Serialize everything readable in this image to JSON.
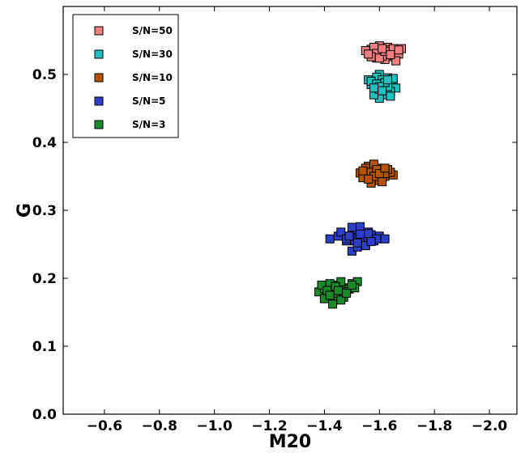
{
  "chart_data": {
    "type": "scatter",
    "title": "",
    "xlabel": "M20",
    "ylabel": "G",
    "xlim": [
      -0.45,
      -2.1
    ],
    "ylim": [
      0.0,
      0.6
    ],
    "x_reversed": true,
    "x_ticks": [
      -0.6,
      -0.8,
      -1.0,
      -1.2,
      -1.4,
      -1.6,
      -1.8,
      -2.0
    ],
    "x_tick_labels": [
      "−0.6",
      "−0.8",
      "−1.0",
      "−1.2",
      "−1.4",
      "−1.6",
      "−1.8",
      "−2.0"
    ],
    "y_ticks": [
      0.0,
      0.1,
      0.2,
      0.3,
      0.4,
      0.5
    ],
    "y_tick_labels": [
      "0.0",
      "0.1",
      "0.2",
      "0.3",
      "0.4",
      "0.5"
    ],
    "grid": false,
    "legend_position": "top-left",
    "marker": "square",
    "series": [
      {
        "name": "S/N=50",
        "color": "#f08080",
        "x": [
          -1.56,
          -1.58,
          -1.6,
          -1.62,
          -1.64,
          -1.66,
          -1.68,
          -1.57,
          -1.59,
          -1.61,
          -1.63,
          -1.65,
          -1.67,
          -1.6,
          -1.62,
          -1.55,
          -1.64,
          -1.66,
          -1.58,
          -1.61,
          -1.63,
          -1.59,
          -1.65,
          -1.57,
          -1.6,
          -1.62,
          -1.64,
          -1.56,
          -1.67,
          -1.61
        ],
        "y": [
          0.532,
          0.528,
          0.535,
          0.53,
          0.526,
          0.534,
          0.538,
          0.537,
          0.524,
          0.532,
          0.54,
          0.528,
          0.53,
          0.542,
          0.522,
          0.535,
          0.533,
          0.52,
          0.54,
          0.527,
          0.536,
          0.531,
          0.538,
          0.526,
          0.524,
          0.534,
          0.529,
          0.53,
          0.536,
          0.538
        ]
      },
      {
        "name": "S/N=30",
        "color": "#20c0c0",
        "x": [
          -1.57,
          -1.59,
          -1.61,
          -1.63,
          -1.65,
          -1.6,
          -1.62,
          -1.58,
          -1.64,
          -1.56,
          -1.61,
          -1.63,
          -1.59,
          -1.66,
          -1.6,
          -1.62,
          -1.57,
          -1.64,
          -1.61,
          -1.58,
          -1.63,
          -1.6,
          -1.65,
          -1.59,
          -1.62,
          -1.6,
          -1.58,
          -1.64,
          -1.61,
          -1.63
        ],
        "y": [
          0.485,
          0.49,
          0.48,
          0.495,
          0.485,
          0.5,
          0.475,
          0.478,
          0.49,
          0.492,
          0.488,
          0.47,
          0.496,
          0.48,
          0.465,
          0.484,
          0.49,
          0.475,
          0.492,
          0.47,
          0.482,
          0.478,
          0.494,
          0.486,
          0.488,
          0.482,
          0.48,
          0.468,
          0.476,
          0.492
        ]
      },
      {
        "name": "S/N=10",
        "color": "#b35400",
        "x": [
          -1.53,
          -1.55,
          -1.57,
          -1.59,
          -1.61,
          -1.63,
          -1.65,
          -1.54,
          -1.56,
          -1.58,
          -1.6,
          -1.62,
          -1.64,
          -1.55,
          -1.57,
          -1.59,
          -1.61,
          -1.63,
          -1.56,
          -1.58,
          -1.6,
          -1.62,
          -1.54,
          -1.57,
          -1.59,
          -1.61,
          -1.58,
          -1.6,
          -1.56,
          -1.62
        ],
        "y": [
          0.355,
          0.36,
          0.35,
          0.362,
          0.355,
          0.358,
          0.352,
          0.348,
          0.365,
          0.345,
          0.36,
          0.35,
          0.356,
          0.362,
          0.34,
          0.354,
          0.348,
          0.36,
          0.352,
          0.368,
          0.344,
          0.354,
          0.358,
          0.356,
          0.36,
          0.342,
          0.35,
          0.354,
          0.346,
          0.362
        ]
      },
      {
        "name": "S/N=5",
        "color": "#2c3fc6",
        "x": [
          -1.42,
          -1.45,
          -1.48,
          -1.5,
          -1.52,
          -1.54,
          -1.56,
          -1.58,
          -1.6,
          -1.62,
          -1.46,
          -1.49,
          -1.51,
          -1.53,
          -1.55,
          -1.57,
          -1.59,
          -1.5,
          -1.52,
          -1.54,
          -1.56,
          -1.48,
          -1.53,
          -1.55,
          -1.51,
          -1.57,
          -1.49,
          -1.53,
          -1.52,
          -1.5
        ],
        "y": [
          0.258,
          0.262,
          0.255,
          0.265,
          0.27,
          0.25,
          0.268,
          0.255,
          0.262,
          0.258,
          0.268,
          0.262,
          0.272,
          0.276,
          0.25,
          0.264,
          0.258,
          0.24,
          0.246,
          0.26,
          0.266,
          0.258,
          0.26,
          0.248,
          0.255,
          0.254,
          0.262,
          0.265,
          0.252,
          0.275
        ]
      },
      {
        "name": "S/N=3",
        "color": "#1a8a2a",
        "x": [
          -1.38,
          -1.4,
          -1.42,
          -1.44,
          -1.46,
          -1.48,
          -1.5,
          -1.52,
          -1.39,
          -1.41,
          -1.43,
          -1.45,
          -1.47,
          -1.49,
          -1.51,
          -1.4,
          -1.42,
          -1.44,
          -1.46,
          -1.48,
          -1.5,
          -1.43,
          -1.45,
          -1.47,
          -1.41,
          -1.44,
          -1.46,
          -1.48,
          -1.42,
          -1.45
        ],
        "y": [
          0.18,
          0.185,
          0.175,
          0.19,
          0.18,
          0.186,
          0.192,
          0.195,
          0.19,
          0.18,
          0.188,
          0.172,
          0.176,
          0.184,
          0.186,
          0.17,
          0.192,
          0.185,
          0.195,
          0.18,
          0.19,
          0.162,
          0.178,
          0.172,
          0.182,
          0.188,
          0.168,
          0.178,
          0.175,
          0.182
        ]
      }
    ]
  }
}
